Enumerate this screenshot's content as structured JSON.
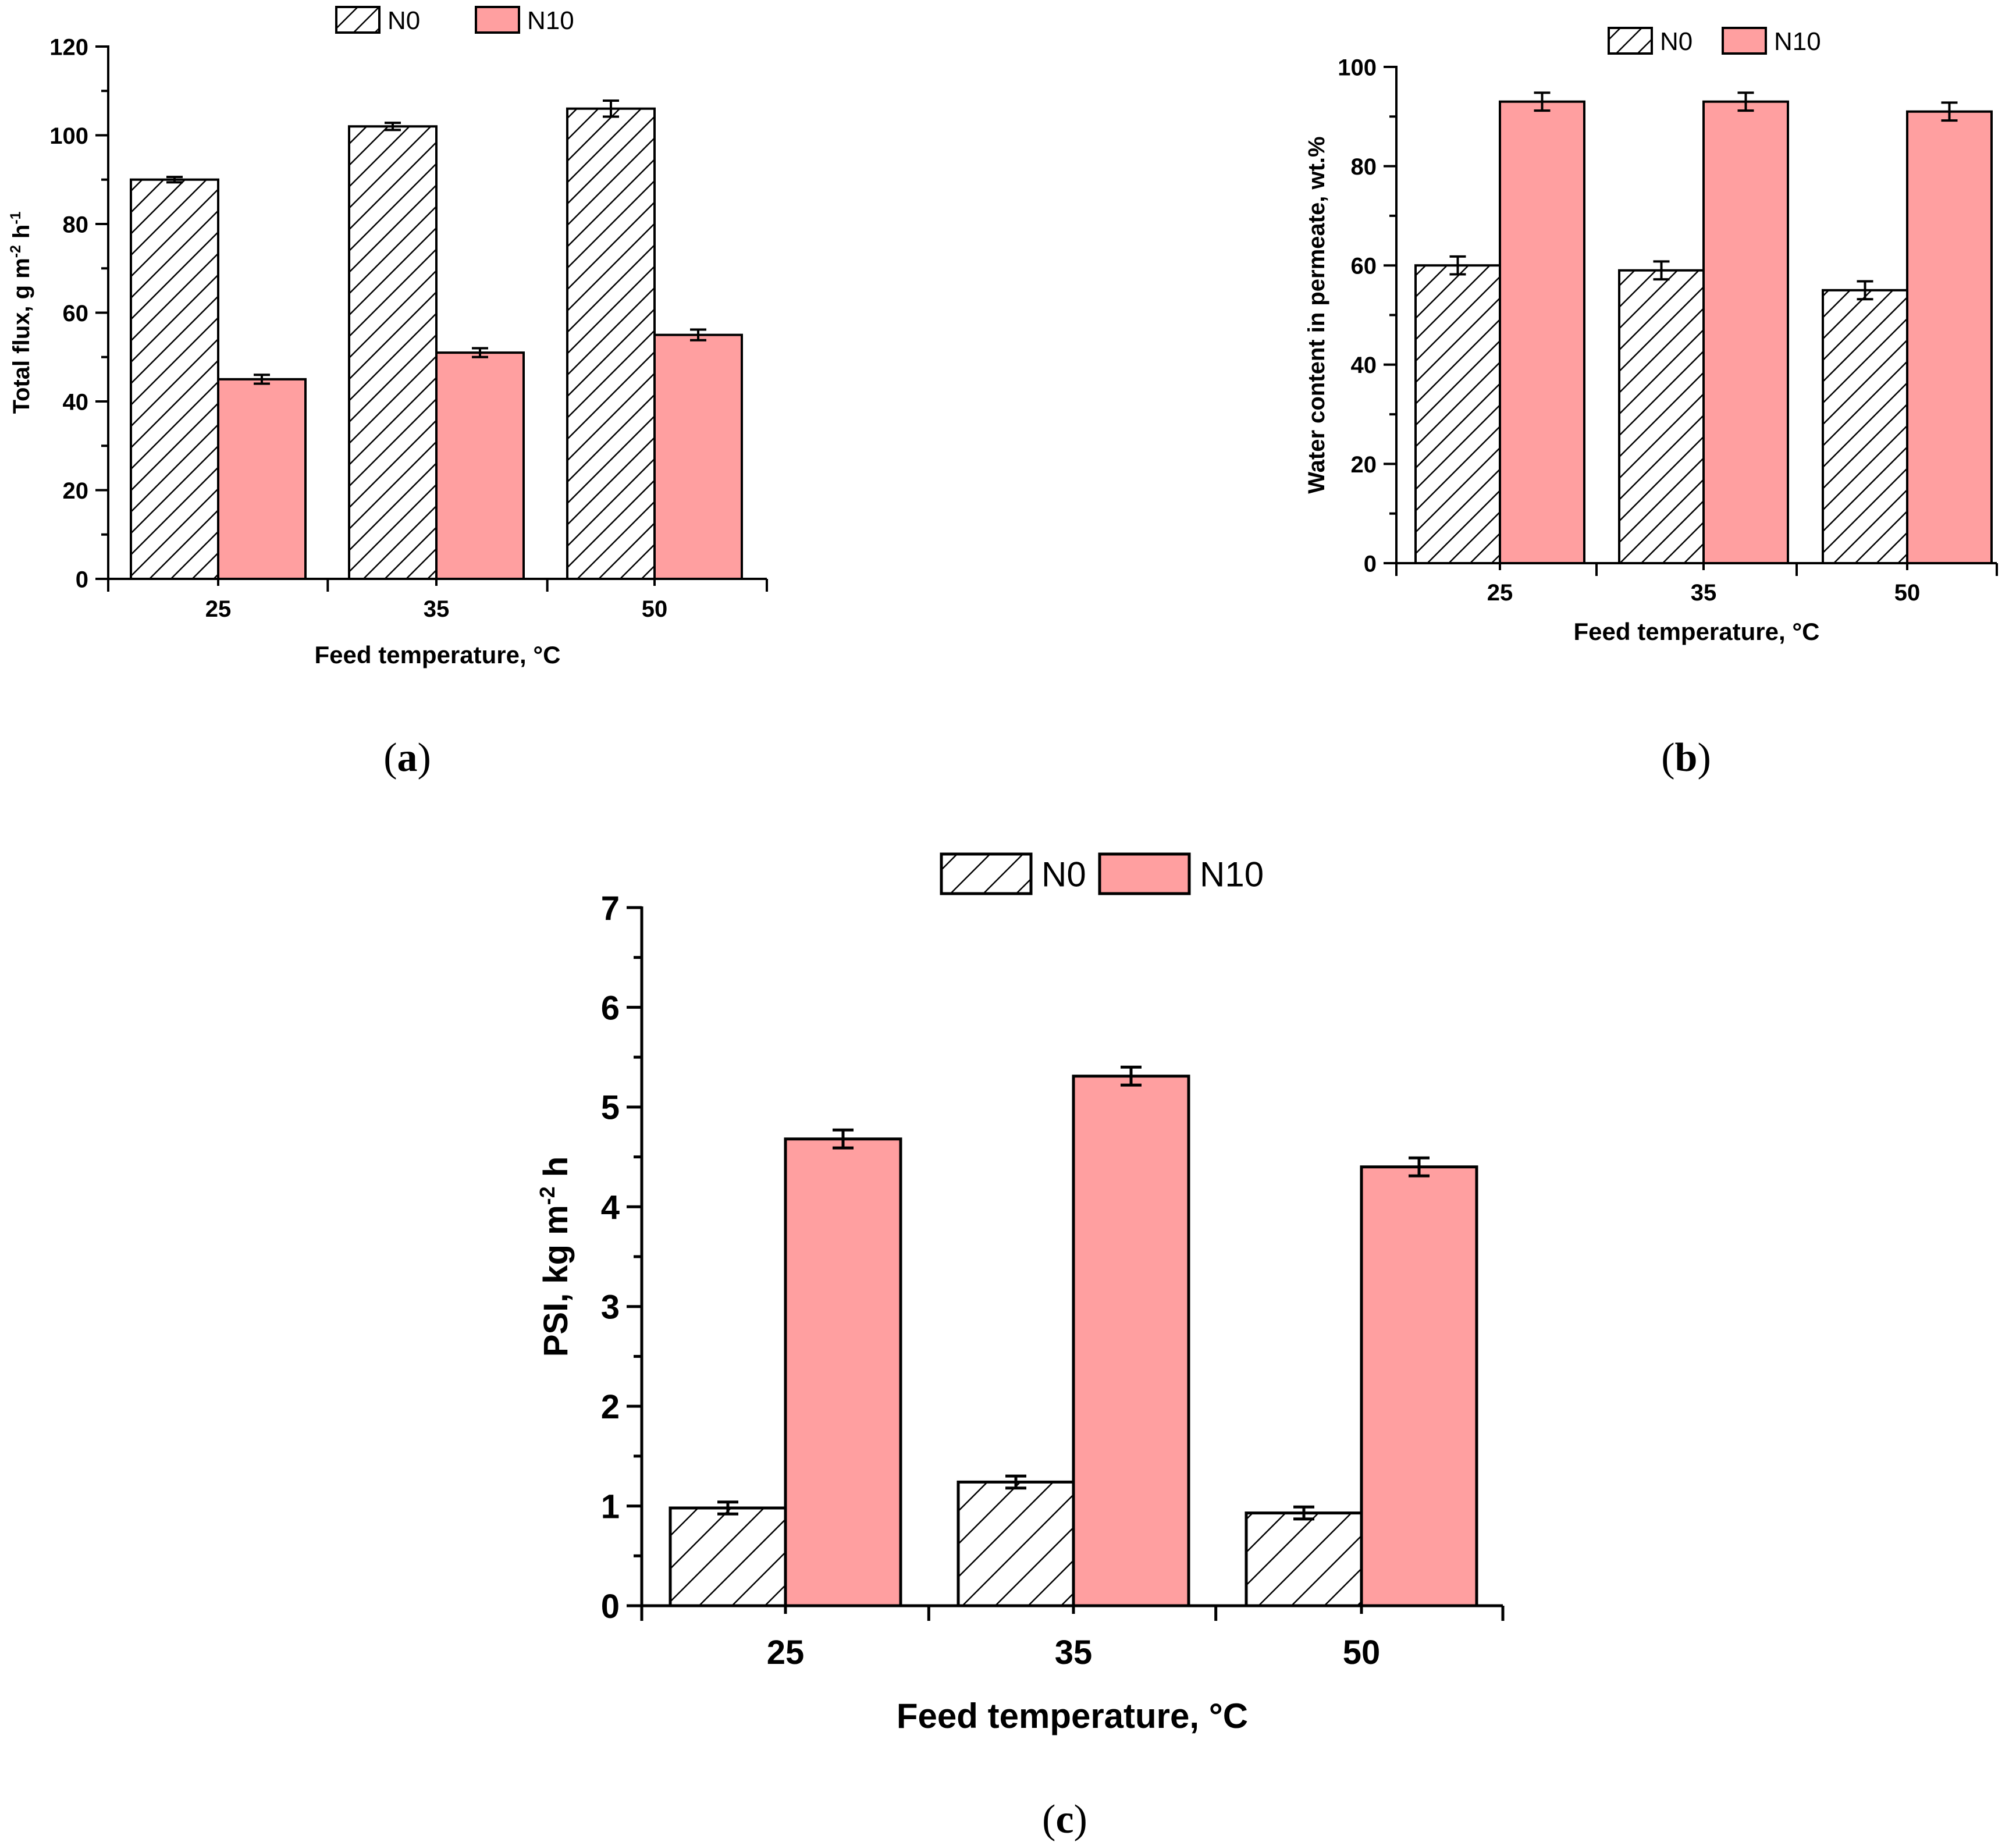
{
  "colors": {
    "n0_fill": "#ffffff",
    "n0_hatch": "#000000",
    "n10_fill": "#ff9fa0",
    "stroke": "#000000"
  },
  "chart_data": [
    {
      "id": "a",
      "type": "bar",
      "title": "",
      "caption": {
        "open": "(",
        "letter": "a",
        "close": ")"
      },
      "categories": [
        "25",
        "35",
        "50"
      ],
      "series": [
        {
          "name": "N0",
          "values": [
            90,
            102,
            106
          ],
          "errors": [
            0.6,
            0.8,
            1.8
          ],
          "fill": "hatch"
        },
        {
          "name": "N10",
          "values": [
            45,
            51,
            55
          ],
          "errors": [
            1.0,
            1.0,
            1.2
          ],
          "fill": "solid"
        }
      ],
      "xlabel": "Feed temperature, °C",
      "ylabel_parts": {
        "main": "Total flux, g m",
        "sup1": "-2",
        "mid": " h",
        "sup2": "-1"
      },
      "ylim": [
        0,
        120
      ],
      "yticks": [
        0,
        20,
        40,
        60,
        80,
        100,
        120
      ],
      "grid": false,
      "legend": "top-center"
    },
    {
      "id": "b",
      "type": "bar",
      "title": "",
      "caption": {
        "open": "(",
        "letter": "b",
        "close": ")"
      },
      "categories": [
        "25",
        "35",
        "50"
      ],
      "series": [
        {
          "name": "N0",
          "values": [
            60,
            59,
            55
          ],
          "errors": [
            1.8,
            1.8,
            1.8
          ],
          "fill": "hatch"
        },
        {
          "name": "N10",
          "values": [
            93,
            93,
            91
          ],
          "errors": [
            1.8,
            1.8,
            1.8
          ],
          "fill": "solid"
        }
      ],
      "xlabel": "Feed temperature, °C",
      "ylabel_parts": {
        "main": "Water content in permeate, wt.%",
        "sup1": "",
        "mid": "",
        "sup2": ""
      },
      "ylim": [
        0,
        100
      ],
      "yticks": [
        0,
        20,
        40,
        60,
        80,
        100
      ],
      "grid": false,
      "legend": "top-center"
    },
    {
      "id": "c",
      "type": "bar",
      "title": "",
      "caption": {
        "open": "(",
        "letter": "c",
        "close": ")"
      },
      "categories": [
        "25",
        "35",
        "50"
      ],
      "series": [
        {
          "name": "N0",
          "values": [
            0.98,
            1.24,
            0.93
          ],
          "errors": [
            0.06,
            0.06,
            0.06
          ],
          "fill": "hatch"
        },
        {
          "name": "N10",
          "values": [
            4.68,
            5.31,
            4.4
          ],
          "errors": [
            0.09,
            0.09,
            0.09
          ],
          "fill": "solid"
        }
      ],
      "xlabel": "Feed temperature, °C",
      "ylabel_parts": {
        "main": "PSI, kg m",
        "sup1": "-2",
        "mid": " h",
        "sup2": ""
      },
      "ylim": [
        0,
        7
      ],
      "yticks": [
        0,
        1,
        2,
        3,
        4,
        5,
        6,
        7
      ],
      "grid": false,
      "legend": "top-center"
    }
  ]
}
